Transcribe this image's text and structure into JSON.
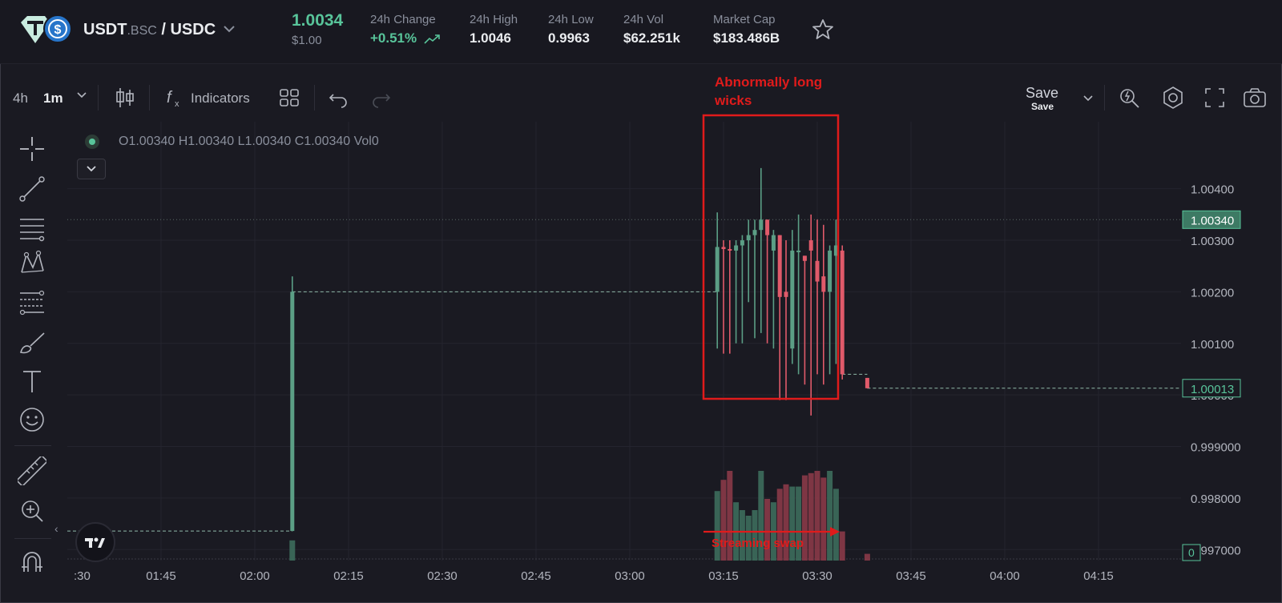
{
  "header": {
    "pair_base": "USDT",
    "pair_network": ".BSC",
    "pair_sep": " / ",
    "pair_quote": "USDC",
    "price": "1.0034",
    "price_usd": "$1.00",
    "stats": [
      {
        "label": "24h Change",
        "value": "+0.51%",
        "up": true
      },
      {
        "label": "24h High",
        "value": "1.0046"
      },
      {
        "label": "24h Low",
        "value": "0.9963"
      },
      {
        "label": "24h Vol",
        "value": "$62.251k"
      },
      {
        "label": "Market Cap",
        "value": "$183.486B"
      }
    ]
  },
  "toolbar": {
    "interval_1": "4h",
    "interval_2": "1m",
    "indicators_label": "Indicators",
    "save_label": "Save",
    "save_sub": "Save"
  },
  "ohlc": {
    "o": "O1.00340",
    "h": "H1.00340",
    "l": "L1.00340",
    "c": "C1.00340",
    "vol": "Vol0"
  },
  "colors": {
    "up": "#58c49a",
    "down": "#e05a6a",
    "up_wick": "#5b9e85",
    "annotation": "#e01b1b",
    "bg": "#1a1a22"
  },
  "chart_data": {
    "type": "candlestick",
    "x_tick_labels": [
      ":30",
      "01:45",
      "02:00",
      "02:15",
      "02:30",
      "02:45",
      "03:00",
      "03:15",
      "03:30",
      "03:45",
      "04:00",
      "04:15"
    ],
    "y_tick_labels": [
      "1.00400",
      "1.00300",
      "1.00200",
      "1.00100",
      "1.00000",
      "0.999000",
      "0.998000",
      "0.997000"
    ],
    "ylim": [
      0.9966,
      1.0053
    ],
    "current_price_label": "1.00340",
    "last_price_label": "1.00013",
    "volume_label": "0",
    "grid": true,
    "annotations": [
      {
        "text_line1": "Abnormally long",
        "text_line2": "wicks"
      },
      {
        "text": "Streaming swap"
      }
    ],
    "series": [
      {
        "name": "candles",
        "points": [
          {
            "t": "02:06",
            "o": 0.99736,
            "h": 1.0023,
            "l": 0.99736,
            "c": 1.002,
            "v": 0.18
          },
          {
            "t": "03:14",
            "o": 1.002,
            "h": 1.00354,
            "l": 1.0009,
            "c": 1.00287,
            "v": 0.62
          },
          {
            "t": "03:15",
            "o": 1.00287,
            "h": 1.003,
            "l": 1.0008,
            "c": 1.00283,
            "v": 0.72
          },
          {
            "t": "03:16",
            "o": 1.00283,
            "h": 1.003,
            "l": 1.0008,
            "c": 1.0028,
            "v": 0.8
          },
          {
            "t": "03:17",
            "o": 1.0028,
            "h": 1.003,
            "l": 1.001,
            "c": 1.0029,
            "v": 0.52
          },
          {
            "t": "03:18",
            "o": 1.0029,
            "h": 1.0031,
            "l": 1.001,
            "c": 1.003,
            "v": 0.45
          },
          {
            "t": "03:19",
            "o": 1.003,
            "h": 1.0034,
            "l": 1.0018,
            "c": 1.0031,
            "v": 0.4
          },
          {
            "t": "03:20",
            "o": 1.0031,
            "h": 1.0034,
            "l": 1.0011,
            "c": 1.0032,
            "v": 0.45
          },
          {
            "t": "03:21",
            "o": 1.0032,
            "h": 1.0044,
            "l": 1.0012,
            "c": 1.0034,
            "v": 0.8
          },
          {
            "t": "03:22",
            "o": 1.0034,
            "h": 1.0034,
            "l": 1.001,
            "c": 1.0031,
            "v": 0.55
          },
          {
            "t": "03:23",
            "o": 1.0028,
            "h": 1.0032,
            "l": 1.0009,
            "c": 1.0031,
            "v": 0.52
          },
          {
            "t": "03:24",
            "o": 1.0031,
            "h": 1.0031,
            "l": 0.9999,
            "c": 1.0019,
            "v": 0.64
          },
          {
            "t": "03:25",
            "o": 1.002,
            "h": 1.003,
            "l": 0.9999,
            "c": 1.0019,
            "v": 0.68
          },
          {
            "t": "03:26",
            "o": 1.0009,
            "h": 1.0032,
            "l": 1.0006,
            "c": 1.0028,
            "v": 0.66
          },
          {
            "t": "03:27",
            "o": 1.0028,
            "h": 1.0035,
            "l": 1.0004,
            "c": 1.0028,
            "v": 0.66
          },
          {
            "t": "03:28",
            "o": 1.0027,
            "h": 1.0027,
            "l": 1.0002,
            "c": 1.0026,
            "v": 0.76
          },
          {
            "t": "03:29",
            "o": 1.003,
            "h": 1.0035,
            "l": 0.9996,
            "c": 1.0028,
            "v": 0.78
          },
          {
            "t": "03:30",
            "o": 1.0026,
            "h": 1.0034,
            "l": 1.0004,
            "c": 1.0022,
            "v": 0.8
          },
          {
            "t": "03:31",
            "o": 1.0023,
            "h": 1.0033,
            "l": 1.0002,
            "c": 1.002,
            "v": 0.74
          },
          {
            "t": "03:32",
            "o": 1.002,
            "h": 1.0029,
            "l": 1.0004,
            "c": 1.0028,
            "v": 0.8
          },
          {
            "t": "03:33",
            "o": 1.0027,
            "h": 1.0034,
            "l": 1.0006,
            "c": 1.0029,
            "v": 0.64
          },
          {
            "t": "03:34",
            "o": 1.0028,
            "h": 1.0029,
            "l": 1.0003,
            "c": 1.0004,
            "v": 0.26
          },
          {
            "t": "03:38",
            "o": 1.00033,
            "h": 1.00033,
            "l": 1.00013,
            "c": 1.00013,
            "v": 0.06
          }
        ]
      }
    ]
  }
}
